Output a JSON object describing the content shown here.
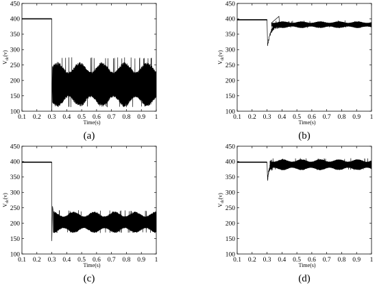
{
  "chart_data": [
    {
      "panel_label": "(a)",
      "type": "line",
      "xlabel": "Time(s)",
      "ylabel": "V",
      "ylabel_sub": "dc",
      "ylabel_unit": "(v)",
      "xlim": [
        0.1,
        1.0
      ],
      "ylim": [
        100,
        450
      ],
      "xticks": [
        "0.1",
        "0.2",
        "0.3",
        "0.4",
        "0.5",
        "0.6",
        "0.7",
        "0.8",
        "0.9",
        "1"
      ],
      "yticks": [
        "100",
        "150",
        "200",
        "250",
        "300",
        "350",
        "400",
        "450"
      ],
      "series": [
        {
          "segments": [
            {
              "kind": "flat",
              "x": [
                0.1,
                0.3
              ],
              "y": 400
            },
            {
              "kind": "drop",
              "x": 0.3,
              "from": 400,
              "to": 100
            },
            {
              "kind": "ripple",
              "x": [
                0.305,
                1.0
              ],
              "band_min": 113,
              "band_max": 260,
              "spike_max": 275,
              "lower_band_min": 125,
              "upper_band_max": 258,
              "period": 0.012
            }
          ]
        }
      ]
    },
    {
      "panel_label": "(b)",
      "type": "line",
      "xlabel": "Time(s)",
      "ylabel": "V",
      "ylabel_sub": "dc",
      "ylabel_unit": "(v)",
      "xlim": [
        0.1,
        1.0
      ],
      "ylim": [
        100,
        450
      ],
      "xticks": [
        "0.1",
        "0.2",
        "0.3",
        "0.4",
        "0.5",
        "0.6",
        "0.7",
        "0.8",
        "0.9",
        "1"
      ],
      "yticks": [
        "100",
        "150",
        "200",
        "250",
        "300",
        "350",
        "400",
        "450"
      ],
      "series": [
        {
          "segments": [
            {
              "kind": "flat",
              "x": [
                0.1,
                0.3
              ],
              "y": 397
            },
            {
              "kind": "dip",
              "x": 0.3,
              "min": 312,
              "recover_to": 380,
              "overshoot": 408,
              "overshoot_at": 0.38
            },
            {
              "kind": "ripple",
              "x": [
                0.33,
                1.0
              ],
              "band_min": 370,
              "band_max": 392,
              "spike_max": 395,
              "lower_band_min": 372,
              "upper_band_max": 390,
              "period": 0.01
            }
          ]
        }
      ]
    },
    {
      "panel_label": "(c)",
      "type": "line",
      "xlabel": "Time(s)",
      "ylabel": "V",
      "ylabel_sub": "dc",
      "ylabel_unit": "(v)",
      "xlim": [
        0.1,
        1.0
      ],
      "ylim": [
        100,
        450
      ],
      "xticks": [
        "0.1",
        "0.2",
        "0.3",
        "0.4",
        "0.5",
        "0.6",
        "0.7",
        "0.8",
        "0.9",
        "1"
      ],
      "yticks": [
        "100",
        "150",
        "200",
        "250",
        "300",
        "350",
        "400",
        "450"
      ],
      "series": [
        {
          "segments": [
            {
              "kind": "flat",
              "x": [
                0.1,
                0.3
              ],
              "y": 398
            },
            {
              "kind": "drop",
              "x": 0.3,
              "from": 398,
              "to": 142
            },
            {
              "kind": "spike",
              "x": 0.305,
              "y": 255
            },
            {
              "kind": "ripple",
              "x": [
                0.31,
                1.0
              ],
              "band_min": 168,
              "band_max": 238,
              "spike_max": 242,
              "lower_band_min": 170,
              "upper_band_max": 236,
              "period": 0.011
            }
          ]
        }
      ]
    },
    {
      "panel_label": "(d)",
      "type": "line",
      "xlabel": "Time(s)",
      "ylabel": "V",
      "ylabel_sub": "dc",
      "ylabel_unit": "(v)",
      "xlim": [
        0.1,
        1.0
      ],
      "ylim": [
        100,
        450
      ],
      "xticks": [
        "0.1",
        "0.2",
        "0.3",
        "0.4",
        "0.5",
        "0.6",
        "0.7",
        "0.8",
        "0.9",
        "1"
      ],
      "yticks": [
        "100",
        "150",
        "200",
        "250",
        "300",
        "350",
        "400",
        "450"
      ],
      "series": [
        {
          "segments": [
            {
              "kind": "flat",
              "x": [
                0.1,
                0.3
              ],
              "y": 398
            },
            {
              "kind": "dip",
              "x": 0.3,
              "min": 338,
              "recover_to": 385,
              "overshoot": 405,
              "overshoot_at": 0.33
            },
            {
              "kind": "ripple",
              "x": [
                0.32,
                1.0
              ],
              "band_min": 372,
              "band_max": 408,
              "spike_max": 412,
              "lower_band_min": 375,
              "upper_band_max": 405,
              "period": 0.01
            }
          ]
        }
      ]
    }
  ],
  "style": {
    "line_color": "#000000",
    "axis_color": "#000000"
  }
}
